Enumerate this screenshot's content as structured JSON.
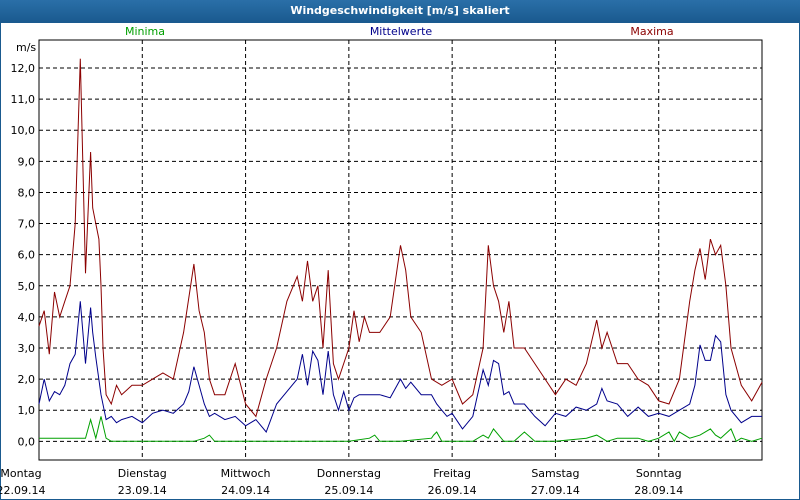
{
  "window": {
    "title": "Windgeschwindigkeit [m/s] skaliert"
  },
  "chart_data": {
    "type": "line",
    "title": "Windgeschwindigkeit [m/s] skaliert",
    "ylabel": "m/s",
    "ylim": [
      -0.6,
      12.9
    ],
    "yticks": [
      "0,0",
      "1,0",
      "2,0",
      "3,0",
      "4,0",
      "5,0",
      "6,0",
      "7,0",
      "8,0",
      "9,0",
      "10,0",
      "11,0",
      "12,0"
    ],
    "ytick_values": [
      0,
      1,
      2,
      3,
      4,
      5,
      6,
      7,
      8,
      9,
      10,
      11,
      12
    ],
    "xlim": [
      0,
      7.0
    ],
    "xticks": [
      {
        "x": 0,
        "day": "Montag",
        "date": "22.09.14"
      },
      {
        "x": 1,
        "day": "Dienstag",
        "date": "23.09.14"
      },
      {
        "x": 2,
        "day": "Mittwoch",
        "date": "24.09.14"
      },
      {
        "x": 3,
        "day": "Donnerstag",
        "date": "25.09.14"
      },
      {
        "x": 4,
        "day": "Freitag",
        "date": "26.09.14"
      },
      {
        "x": 5,
        "day": "Samstag",
        "date": "27.09.14"
      },
      {
        "x": 6,
        "day": "Sonntag",
        "date": "28.09.14"
      }
    ],
    "grid": true,
    "series": [
      {
        "name": "Minima",
        "color": "#00a000",
        "x": [
          0,
          0.1,
          0.2,
          0.3,
          0.4,
          0.45,
          0.5,
          0.55,
          0.6,
          0.65,
          0.7,
          1.0,
          1.5,
          1.6,
          1.65,
          1.7,
          2.0,
          2.5,
          3.0,
          3.2,
          3.25,
          3.3,
          3.5,
          3.8,
          3.82,
          3.85,
          3.9,
          4.0,
          4.2,
          4.3,
          4.35,
          4.4,
          4.5,
          4.6,
          4.7,
          4.8,
          5.0,
          5.3,
          5.4,
          5.5,
          5.6,
          5.8,
          5.9,
          6.0,
          6.1,
          6.15,
          6.2,
          6.25,
          6.3,
          6.4,
          6.5,
          6.55,
          6.6,
          6.7,
          6.75,
          6.8,
          6.9,
          7.0
        ],
        "y": [
          0.1,
          0.1,
          0.1,
          0.1,
          0.1,
          0.1,
          0.7,
          0.1,
          0.8,
          0.1,
          0.0,
          0.0,
          0.0,
          0.1,
          0.2,
          0.0,
          0.0,
          0.0,
          0.0,
          0.1,
          0.2,
          0.0,
          0.0,
          0.1,
          0.2,
          0.3,
          0.0,
          0.0,
          0.0,
          0.2,
          0.1,
          0.4,
          0.0,
          0.0,
          0.3,
          0.0,
          0.0,
          0.1,
          0.2,
          0.0,
          0.1,
          0.1,
          0.0,
          0.1,
          0.3,
          0.0,
          0.3,
          0.2,
          0.1,
          0.2,
          0.4,
          0.2,
          0.1,
          0.4,
          0.0,
          0.1,
          0.0,
          0.1
        ]
      },
      {
        "name": "Mittelwerte",
        "color": "#00008b",
        "x": [
          0,
          0.05,
          0.1,
          0.15,
          0.2,
          0.25,
          0.3,
          0.35,
          0.4,
          0.45,
          0.5,
          0.52,
          0.55,
          0.6,
          0.65,
          0.7,
          0.75,
          0.8,
          0.9,
          1.0,
          1.1,
          1.2,
          1.3,
          1.4,
          1.45,
          1.5,
          1.55,
          1.6,
          1.65,
          1.7,
          1.8,
          1.9,
          2.0,
          2.1,
          2.2,
          2.3,
          2.4,
          2.5,
          2.55,
          2.6,
          2.65,
          2.7,
          2.75,
          2.8,
          2.85,
          2.9,
          2.95,
          3.0,
          3.05,
          3.1,
          3.15,
          3.2,
          3.3,
          3.4,
          3.5,
          3.55,
          3.6,
          3.7,
          3.8,
          3.85,
          3.9,
          3.95,
          4.0,
          4.1,
          4.2,
          4.3,
          4.35,
          4.4,
          4.45,
          4.5,
          4.55,
          4.6,
          4.7,
          4.8,
          4.9,
          5.0,
          5.1,
          5.2,
          5.3,
          5.4,
          5.45,
          5.5,
          5.6,
          5.7,
          5.8,
          5.9,
          6.0,
          6.1,
          6.2,
          6.3,
          6.35,
          6.4,
          6.45,
          6.5,
          6.55,
          6.6,
          6.65,
          6.7,
          6.8,
          6.9,
          7.0
        ],
        "y": [
          1.2,
          2.0,
          1.3,
          1.6,
          1.5,
          1.8,
          2.5,
          2.8,
          4.5,
          2.5,
          4.3,
          3.5,
          2.7,
          1.5,
          0.7,
          0.8,
          0.6,
          0.7,
          0.8,
          0.6,
          0.9,
          1.0,
          0.9,
          1.2,
          1.6,
          2.4,
          1.8,
          1.2,
          0.8,
          0.9,
          0.7,
          0.8,
          0.5,
          0.7,
          0.3,
          1.2,
          1.6,
          2.0,
          2.8,
          1.8,
          2.9,
          2.6,
          1.5,
          2.9,
          1.5,
          1.0,
          1.6,
          1.0,
          1.4,
          1.5,
          1.5,
          1.5,
          1.5,
          1.4,
          2.0,
          1.7,
          1.9,
          1.5,
          1.5,
          1.2,
          1.0,
          0.8,
          0.9,
          0.4,
          0.8,
          2.3,
          1.8,
          2.6,
          2.5,
          1.5,
          1.6,
          1.2,
          1.2,
          0.8,
          0.5,
          0.9,
          0.8,
          1.1,
          1.0,
          1.2,
          1.7,
          1.3,
          1.2,
          0.8,
          1.1,
          0.8,
          0.9,
          0.8,
          1.0,
          1.2,
          1.8,
          3.1,
          2.6,
          2.6,
          3.4,
          3.2,
          1.5,
          1.0,
          0.6,
          0.8,
          0.8
        ]
      },
      {
        "name": "Maxima",
        "color": "#8b0000",
        "x": [
          0,
          0.05,
          0.1,
          0.15,
          0.2,
          0.25,
          0.3,
          0.35,
          0.4,
          0.45,
          0.5,
          0.52,
          0.55,
          0.58,
          0.6,
          0.62,
          0.65,
          0.7,
          0.75,
          0.8,
          0.9,
          1.0,
          1.1,
          1.2,
          1.3,
          1.4,
          1.5,
          1.55,
          1.6,
          1.65,
          1.7,
          1.8,
          1.9,
          2.0,
          2.1,
          2.2,
          2.3,
          2.4,
          2.5,
          2.55,
          2.6,
          2.65,
          2.7,
          2.75,
          2.8,
          2.85,
          2.9,
          3.0,
          3.05,
          3.1,
          3.15,
          3.2,
          3.3,
          3.4,
          3.5,
          3.55,
          3.6,
          3.7,
          3.8,
          3.9,
          4.0,
          4.1,
          4.2,
          4.3,
          4.35,
          4.4,
          4.45,
          4.5,
          4.55,
          4.6,
          4.7,
          4.8,
          4.9,
          5.0,
          5.1,
          5.2,
          5.3,
          5.4,
          5.45,
          5.5,
          5.6,
          5.7,
          5.8,
          5.9,
          6.0,
          6.1,
          6.2,
          6.3,
          6.35,
          6.4,
          6.45,
          6.5,
          6.55,
          6.6,
          6.65,
          6.7,
          6.8,
          6.9,
          7.0
        ],
        "y": [
          3.7,
          4.2,
          2.8,
          4.8,
          4.0,
          4.5,
          5.0,
          7.0,
          12.3,
          5.4,
          9.3,
          7.5,
          7.0,
          6.5,
          5.0,
          3.0,
          1.5,
          1.2,
          1.8,
          1.5,
          1.8,
          1.8,
          2.0,
          2.2,
          2.0,
          3.5,
          5.7,
          4.2,
          3.5,
          2.0,
          1.5,
          1.5,
          2.5,
          1.2,
          0.8,
          2.0,
          3.0,
          4.5,
          5.3,
          4.5,
          5.8,
          4.5,
          5.0,
          3.0,
          5.5,
          2.5,
          2.0,
          3.0,
          4.2,
          3.2,
          4.0,
          3.5,
          3.5,
          4.0,
          6.3,
          5.5,
          4.0,
          3.5,
          2.0,
          1.8,
          2.0,
          1.2,
          1.5,
          3.0,
          6.3,
          5.0,
          4.5,
          3.5,
          4.5,
          3.0,
          3.0,
          2.5,
          2.0,
          1.5,
          2.0,
          1.8,
          2.5,
          3.9,
          3.0,
          3.5,
          2.5,
          2.5,
          2.0,
          1.8,
          1.3,
          1.2,
          2.0,
          4.5,
          5.5,
          6.2,
          5.2,
          6.5,
          6.0,
          6.3,
          5.0,
          3.0,
          1.8,
          1.3,
          1.9
        ]
      }
    ]
  }
}
